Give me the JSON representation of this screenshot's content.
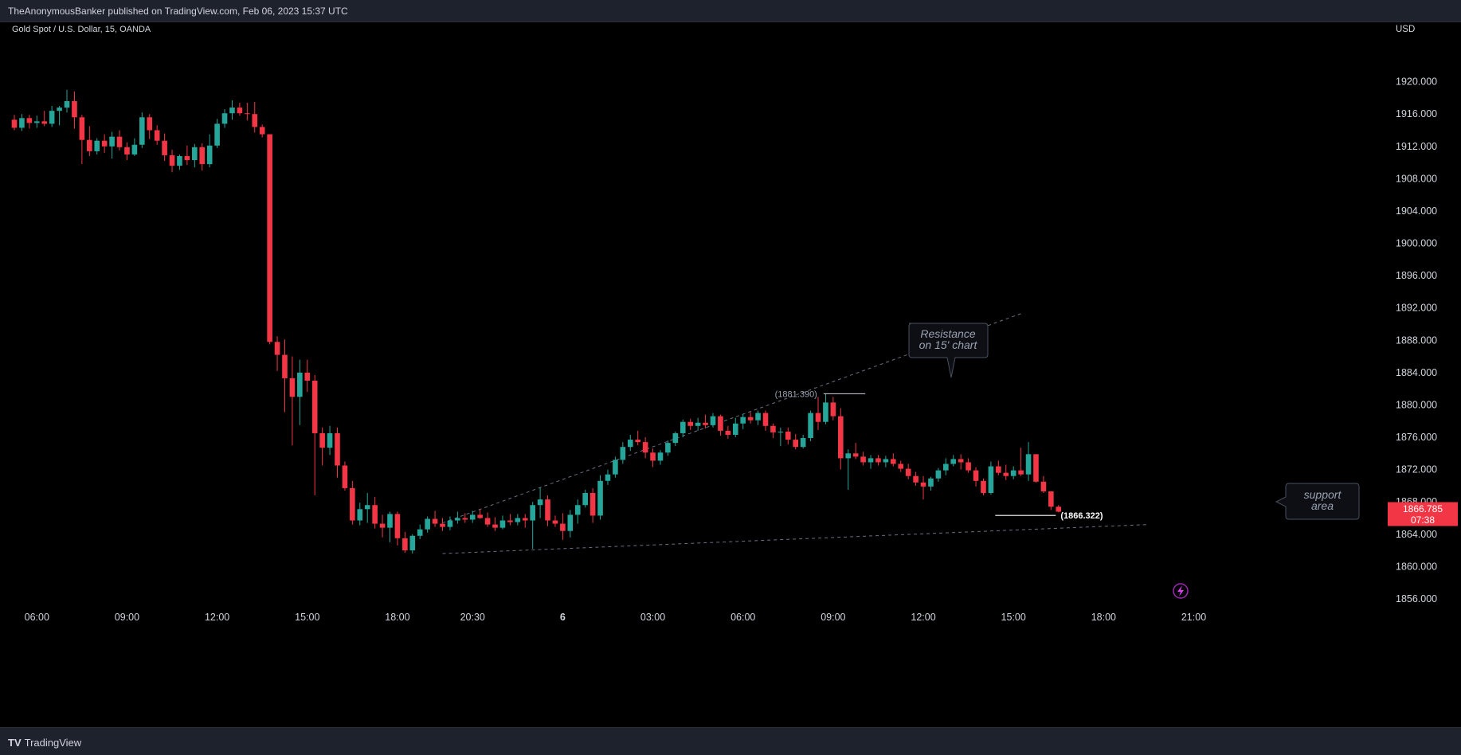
{
  "header": {
    "title": "TheAnonymousBanker published on TradingView.com, Feb 06, 2023 15:37 UTC"
  },
  "footer": {
    "brand": "TradingView",
    "logo_glyph": "TV"
  },
  "chart_data": {
    "type": "candlestick",
    "title": "Gold Spot / U.S. Dollar, 15, OANDA",
    "currency": "USD",
    "ylim": [
      1855.4,
      1924.4
    ],
    "y_ticks": [
      1920,
      1916,
      1912,
      1908,
      1904,
      1900,
      1896,
      1892,
      1888,
      1884,
      1880,
      1876,
      1872,
      1868,
      1864,
      1860,
      1856
    ],
    "x_tick_labels": [
      {
        "i": 3,
        "label": "06:00"
      },
      {
        "i": 15,
        "label": "09:00"
      },
      {
        "i": 27,
        "label": "12:00"
      },
      {
        "i": 39,
        "label": "15:00"
      },
      {
        "i": 51,
        "label": "18:00"
      },
      {
        "i": 61,
        "label": "20:30"
      },
      {
        "i": 73,
        "label": "6",
        "bold": true
      },
      {
        "i": 85,
        "label": "03:00"
      },
      {
        "i": 97,
        "label": "06:00"
      },
      {
        "i": 109,
        "label": "09:00"
      },
      {
        "i": 121,
        "label": "12:00"
      },
      {
        "i": 133,
        "label": "15:00"
      },
      {
        "i": 145,
        "label": "18:00"
      },
      {
        "i": 157,
        "label": "21:00"
      }
    ],
    "candles": [
      [
        1915.3,
        1915.9,
        1914.0,
        1914.3
      ],
      [
        1914.3,
        1916.0,
        1913.9,
        1915.5
      ],
      [
        1915.5,
        1915.9,
        1914.2,
        1914.9
      ],
      [
        1914.9,
        1915.8,
        1914.3,
        1915.1
      ],
      [
        1915.1,
        1916.4,
        1914.5,
        1914.8
      ],
      [
        1914.8,
        1917.0,
        1914.4,
        1916.4
      ],
      [
        1916.4,
        1917.0,
        1914.6,
        1916.8
      ],
      [
        1916.8,
        1919.0,
        1916.2,
        1917.6
      ],
      [
        1917.6,
        1918.8,
        1914.2,
        1915.6
      ],
      [
        1915.6,
        1915.9,
        1909.8,
        1912.8
      ],
      [
        1912.8,
        1914.5,
        1910.8,
        1911.4
      ],
      [
        1911.4,
        1913.0,
        1911.0,
        1912.7
      ],
      [
        1912.7,
        1913.5,
        1911.2,
        1912.0
      ],
      [
        1912.0,
        1913.8,
        1910.5,
        1913.2
      ],
      [
        1913.2,
        1914.0,
        1911.5,
        1911.9
      ],
      [
        1911.9,
        1912.5,
        1910.3,
        1911.0
      ],
      [
        1911.0,
        1913.0,
        1910.8,
        1912.2
      ],
      [
        1912.2,
        1916.2,
        1911.8,
        1915.6
      ],
      [
        1915.6,
        1916.0,
        1912.9,
        1914.0
      ],
      [
        1914.0,
        1914.6,
        1912.2,
        1912.7
      ],
      [
        1912.7,
        1913.6,
        1910.2,
        1910.9
      ],
      [
        1910.9,
        1911.6,
        1908.8,
        1909.6
      ],
      [
        1909.6,
        1911.0,
        1909.1,
        1910.8
      ],
      [
        1910.8,
        1912.1,
        1909.7,
        1910.3
      ],
      [
        1910.3,
        1912.3,
        1909.4,
        1911.9
      ],
      [
        1911.9,
        1912.4,
        1909.0,
        1909.8
      ],
      [
        1909.8,
        1913.5,
        1909.4,
        1912.1
      ],
      [
        1912.1,
        1915.4,
        1911.8,
        1914.8
      ],
      [
        1914.8,
        1916.6,
        1914.3,
        1916.1
      ],
      [
        1916.1,
        1917.7,
        1915.3,
        1916.8
      ],
      [
        1916.8,
        1917.4,
        1915.8,
        1916.1
      ],
      [
        1916.1,
        1917.4,
        1915.2,
        1916.0
      ],
      [
        1916.0,
        1917.5,
        1913.7,
        1914.4
      ],
      [
        1914.4,
        1914.7,
        1913.1,
        1913.5
      ],
      [
        1913.5,
        1913.5,
        1887.5,
        1887.8
      ],
      [
        1887.8,
        1888.5,
        1884.2,
        1886.2
      ],
      [
        1886.2,
        1888.1,
        1879.1,
        1883.3
      ],
      [
        1883.3,
        1886.0,
        1875.0,
        1881.0
      ],
      [
        1881.0,
        1885.6,
        1877.5,
        1884.0
      ],
      [
        1884.0,
        1885.6,
        1881.6,
        1883.0
      ],
      [
        1883.0,
        1883.7,
        1868.8,
        1876.5
      ],
      [
        1876.5,
        1877.2,
        1872.5,
        1874.7
      ],
      [
        1874.7,
        1877.4,
        1873.8,
        1876.5
      ],
      [
        1876.5,
        1877.2,
        1871.0,
        1872.5
      ],
      [
        1872.5,
        1873.0,
        1869.4,
        1869.7
      ],
      [
        1869.7,
        1870.6,
        1865.2,
        1865.7
      ],
      [
        1865.7,
        1867.9,
        1865.1,
        1867.1
      ],
      [
        1867.1,
        1869.1,
        1865.4,
        1867.6
      ],
      [
        1867.6,
        1868.6,
        1864.7,
        1865.3
      ],
      [
        1865.3,
        1866.4,
        1863.6,
        1864.8
      ],
      [
        1864.8,
        1866.8,
        1863.0,
        1866.5
      ],
      [
        1866.5,
        1866.8,
        1862.6,
        1863.5
      ],
      [
        1863.5,
        1864.3,
        1861.7,
        1862.0
      ],
      [
        1862.0,
        1864.0,
        1861.6,
        1863.8
      ],
      [
        1863.8,
        1865.2,
        1863.4,
        1864.6
      ],
      [
        1864.6,
        1866.2,
        1864.2,
        1865.9
      ],
      [
        1865.9,
        1866.9,
        1864.9,
        1865.3
      ],
      [
        1865.3,
        1866.0,
        1864.4,
        1864.9
      ],
      [
        1864.9,
        1866.2,
        1864.5,
        1865.7
      ],
      [
        1865.7,
        1866.8,
        1865.3,
        1866.0
      ],
      [
        1866.0,
        1866.6,
        1865.4,
        1865.8
      ],
      [
        1865.8,
        1866.9,
        1865.4,
        1866.4
      ],
      [
        1866.4,
        1867.1,
        1865.9,
        1866.0
      ],
      [
        1866.0,
        1866.7,
        1864.9,
        1865.2
      ],
      [
        1865.2,
        1866.1,
        1864.4,
        1864.8
      ],
      [
        1864.8,
        1866.3,
        1864.6,
        1865.7
      ],
      [
        1865.7,
        1866.5,
        1865.1,
        1865.5
      ],
      [
        1865.5,
        1866.5,
        1865.1,
        1866.0
      ],
      [
        1866.0,
        1866.5,
        1864.8,
        1865.7
      ],
      [
        1865.7,
        1868.0,
        1862.2,
        1867.6
      ],
      [
        1867.6,
        1869.8,
        1866.0,
        1868.3
      ],
      [
        1868.3,
        1868.8,
        1865.0,
        1865.7
      ],
      [
        1865.7,
        1866.3,
        1864.9,
        1865.3
      ],
      [
        1865.3,
        1866.6,
        1863.3,
        1864.4
      ],
      [
        1864.4,
        1867.0,
        1863.6,
        1866.4
      ],
      [
        1866.4,
        1868.3,
        1865.3,
        1867.6
      ],
      [
        1867.6,
        1869.5,
        1867.3,
        1869.1
      ],
      [
        1869.1,
        1869.7,
        1865.4,
        1866.3
      ],
      [
        1866.3,
        1871.3,
        1865.8,
        1870.6
      ],
      [
        1870.6,
        1872.0,
        1870.1,
        1871.4
      ],
      [
        1871.4,
        1873.6,
        1871.0,
        1873.2
      ],
      [
        1873.2,
        1875.4,
        1872.7,
        1874.8
      ],
      [
        1874.8,
        1876.3,
        1874.3,
        1875.7
      ],
      [
        1875.7,
        1876.8,
        1875.0,
        1875.4
      ],
      [
        1875.4,
        1876.0,
        1873.4,
        1874.1
      ],
      [
        1874.1,
        1874.6,
        1872.3,
        1873.1
      ],
      [
        1873.1,
        1874.4,
        1872.6,
        1874.1
      ],
      [
        1874.1,
        1875.6,
        1873.7,
        1875.3
      ],
      [
        1875.3,
        1876.7,
        1874.9,
        1876.5
      ],
      [
        1876.5,
        1878.2,
        1876.0,
        1877.9
      ],
      [
        1877.9,
        1878.3,
        1876.9,
        1877.4
      ],
      [
        1877.4,
        1878.4,
        1876.8,
        1877.8
      ],
      [
        1877.8,
        1878.8,
        1877.1,
        1877.5
      ],
      [
        1877.5,
        1879.0,
        1877.2,
        1878.6
      ],
      [
        1878.6,
        1878.8,
        1876.2,
        1876.8
      ],
      [
        1876.8,
        1877.4,
        1875.8,
        1876.3
      ],
      [
        1876.3,
        1878.4,
        1876.0,
        1877.7
      ],
      [
        1877.7,
        1878.9,
        1877.0,
        1878.5
      ],
      [
        1878.5,
        1879.1,
        1877.7,
        1878.1
      ],
      [
        1878.1,
        1879.3,
        1877.5,
        1879.0
      ],
      [
        1879.0,
        1879.3,
        1876.8,
        1877.4
      ],
      [
        1877.4,
        1877.7,
        1875.9,
        1876.6
      ],
      [
        1876.6,
        1877.2,
        1874.9,
        1876.7
      ],
      [
        1876.7,
        1877.2,
        1875.1,
        1875.7
      ],
      [
        1875.7,
        1876.4,
        1874.5,
        1874.8
      ],
      [
        1874.8,
        1876.3,
        1874.6,
        1875.9
      ],
      [
        1875.9,
        1879.3,
        1875.5,
        1879.0
      ],
      [
        1879.0,
        1881.0,
        1876.9,
        1877.9
      ],
      [
        1877.9,
        1881.39,
        1877.6,
        1880.3
      ],
      [
        1880.3,
        1881.0,
        1878.1,
        1878.6
      ],
      [
        1878.6,
        1879.6,
        1872.0,
        1873.4
      ],
      [
        1873.4,
        1874.5,
        1869.5,
        1874.0
      ],
      [
        1874.0,
        1875.3,
        1873.3,
        1873.6
      ],
      [
        1873.6,
        1874.2,
        1872.5,
        1872.9
      ],
      [
        1872.9,
        1873.8,
        1872.1,
        1873.4
      ],
      [
        1873.4,
        1873.8,
        1872.5,
        1872.9
      ],
      [
        1872.9,
        1873.7,
        1872.3,
        1873.3
      ],
      [
        1873.3,
        1874.0,
        1872.4,
        1872.7
      ],
      [
        1872.7,
        1873.1,
        1871.7,
        1872.1
      ],
      [
        1872.1,
        1872.7,
        1870.8,
        1871.2
      ],
      [
        1871.2,
        1871.7,
        1870.0,
        1870.4
      ],
      [
        1870.4,
        1871.2,
        1868.3,
        1869.9
      ],
      [
        1869.9,
        1871.1,
        1869.4,
        1870.9
      ],
      [
        1870.9,
        1872.2,
        1870.5,
        1871.9
      ],
      [
        1871.9,
        1873.4,
        1871.3,
        1872.7
      ],
      [
        1872.7,
        1873.8,
        1872.4,
        1873.3
      ],
      [
        1873.3,
        1873.9,
        1872.0,
        1872.9
      ],
      [
        1872.9,
        1873.4,
        1871.6,
        1871.9
      ],
      [
        1871.9,
        1872.3,
        1869.9,
        1870.6
      ],
      [
        1870.6,
        1870.9,
        1868.8,
        1869.1
      ],
      [
        1869.1,
        1873.0,
        1868.9,
        1872.4
      ],
      [
        1872.4,
        1873.1,
        1871.3,
        1871.6
      ],
      [
        1871.6,
        1872.6,
        1870.7,
        1871.2
      ],
      [
        1871.2,
        1872.4,
        1870.8,
        1871.9
      ],
      [
        1871.9,
        1874.7,
        1871.2,
        1871.4
      ],
      [
        1871.4,
        1875.4,
        1870.6,
        1873.9
      ],
      [
        1873.9,
        1873.9,
        1870.4,
        1870.5
      ],
      [
        1870.5,
        1871.2,
        1869.1,
        1869.3
      ],
      [
        1869.3,
        1869.3,
        1867.0,
        1867.4
      ],
      [
        1867.4,
        1867.6,
        1866.7,
        1866.785
      ]
    ],
    "last_price": "1866.785",
    "countdown": "07:38",
    "annotations": {
      "resistance_label_1": "Resistance",
      "resistance_label_2": "on 15' chart",
      "resistance_price": "(1881.390)",
      "resistance_value": 1881.39,
      "support_label_1": "support",
      "support_label_2": "area",
      "support_price": "(1866.322)",
      "support_value": 1866.322
    },
    "trendlines": [
      {
        "from": [
          57,
          1865.4
        ],
        "to": [
          134,
          1891.3
        ],
        "style": "dashed"
      },
      {
        "from": [
          57,
          1861.6
        ],
        "to": [
          151,
          1865.2
        ],
        "style": "dashed"
      }
    ],
    "colors": {
      "up": "#26a69a",
      "down": "#f23645",
      "background": "#000000",
      "text": "#d1d4dc",
      "last_price_bg": "#f23645"
    }
  }
}
